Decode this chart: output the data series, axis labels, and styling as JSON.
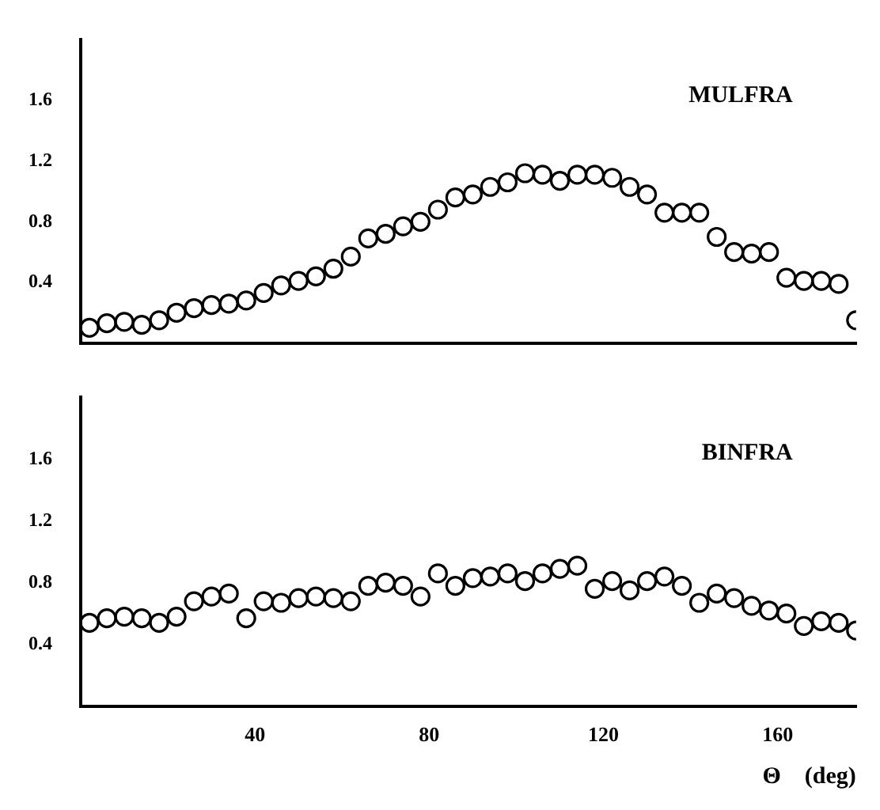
{
  "chart_data": [
    {
      "type": "scatter",
      "annotations": [
        "MULFRA"
      ],
      "marker": "circle",
      "tick_labels": "y",
      "xlim": [
        0,
        178
      ],
      "xticks": [
        40,
        80,
        120,
        160
      ],
      "ylim": [
        0,
        2
      ],
      "yticks": [
        0.4,
        0.8,
        1.2,
        1.6
      ],
      "x": [
        2,
        6,
        10,
        14,
        18,
        22,
        26,
        30,
        34,
        38,
        42,
        46,
        50,
        54,
        58,
        62,
        66,
        70,
        74,
        78,
        82,
        86,
        90,
        94,
        98,
        102,
        106,
        110,
        114,
        118,
        122,
        126,
        130,
        134,
        138,
        142,
        146,
        150,
        154,
        158,
        162,
        166,
        170,
        174,
        178
      ],
      "series": [
        {
          "color": "#000000",
          "values": [
            0.1,
            0.13,
            0.14,
            0.12,
            0.15,
            0.2,
            0.23,
            0.25,
            0.26,
            0.28,
            0.33,
            0.38,
            0.41,
            0.44,
            0.49,
            0.57,
            0.69,
            0.72,
            0.77,
            0.8,
            0.88,
            0.96,
            0.98,
            1.03,
            1.06,
            1.12,
            1.11,
            1.07,
            1.11,
            1.11,
            1.09,
            1.03,
            0.98,
            0.86,
            0.86,
            0.86,
            0.7,
            0.6,
            0.59,
            0.6,
            0.43,
            0.41,
            0.41,
            0.39,
            0.15
          ]
        }
      ]
    },
    {
      "type": "scatter",
      "annotations": [
        "BINFRA"
      ],
      "xlabel": "Θ    (deg)",
      "marker": "circle",
      "xlim": [
        0,
        178
      ],
      "xticks": [
        40,
        80,
        120,
        160
      ],
      "ylim": [
        0,
        2
      ],
      "yticks": [
        0.4,
        0.8,
        1.2,
        1.6
      ],
      "x": [
        2,
        6,
        10,
        14,
        18,
        22,
        26,
        30,
        34,
        38,
        42,
        46,
        50,
        54,
        58,
        62,
        66,
        70,
        74,
        78,
        82,
        86,
        90,
        94,
        98,
        102,
        106,
        110,
        114,
        118,
        122,
        126,
        130,
        134,
        138,
        142,
        146,
        150,
        154,
        158,
        162,
        166,
        170,
        174,
        178
      ],
      "series": [
        {
          "color": "#000000",
          "values": [
            0.54,
            0.57,
            0.58,
            0.57,
            0.54,
            0.58,
            0.68,
            0.71,
            0.73,
            0.57,
            0.68,
            0.67,
            0.7,
            0.71,
            0.7,
            0.68,
            0.78,
            0.8,
            0.78,
            0.71,
            0.86,
            0.78,
            0.83,
            0.84,
            0.86,
            0.81,
            0.86,
            0.89,
            0.91,
            0.76,
            0.81,
            0.75,
            0.81,
            0.84,
            0.78,
            0.67,
            0.73,
            0.7,
            0.65,
            0.62,
            0.6,
            0.52,
            0.55,
            0.54,
            0.49
          ]
        }
      ]
    }
  ]
}
